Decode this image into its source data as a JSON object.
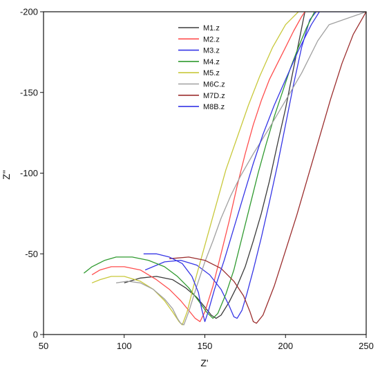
{
  "chart_data": {
    "type": "line",
    "xlabel": "Z'",
    "ylabel": "Z''",
    "xlim": [
      50,
      250
    ],
    "ylim": [
      0,
      -200
    ],
    "xticks": [
      "50",
      "100",
      "150",
      "200",
      "250"
    ],
    "yticks": [
      "0",
      "-50",
      "-100",
      "-150",
      "-200"
    ],
    "grid": false,
    "legend_position": "top-center",
    "series": [
      {
        "name": "M1.z",
        "color": "#3a3a3a",
        "points": [
          [
            100,
            -32
          ],
          [
            110,
            -35
          ],
          [
            120,
            -36
          ],
          [
            130,
            -34
          ],
          [
            138,
            -29
          ],
          [
            145,
            -23
          ],
          [
            150,
            -17
          ],
          [
            154,
            -12
          ],
          [
            157,
            -10
          ],
          [
            160,
            -12
          ],
          [
            165,
            -20
          ],
          [
            170,
            -30
          ],
          [
            175,
            -42
          ],
          [
            180,
            -58
          ],
          [
            185,
            -75
          ],
          [
            190,
            -95
          ],
          [
            195,
            -118
          ],
          [
            200,
            -140
          ],
          [
            205,
            -165
          ],
          [
            210,
            -190
          ],
          [
            212,
            -200
          ]
        ]
      },
      {
        "name": "M2.z",
        "color": "#ff4d4d",
        "points": [
          [
            80,
            -37
          ],
          [
            85,
            -40
          ],
          [
            92,
            -42
          ],
          [
            100,
            -42
          ],
          [
            110,
            -40
          ],
          [
            120,
            -34
          ],
          [
            128,
            -28
          ],
          [
            135,
            -21
          ],
          [
            140,
            -15
          ],
          [
            144,
            -10
          ],
          [
            147,
            -8
          ],
          [
            150,
            -14
          ],
          [
            155,
            -30
          ],
          [
            160,
            -50
          ],
          [
            165,
            -70
          ],
          [
            170,
            -92
          ],
          [
            175,
            -112
          ],
          [
            180,
            -130
          ],
          [
            185,
            -145
          ],
          [
            190,
            -158
          ],
          [
            195,
            -168
          ],
          [
            200,
            -178
          ],
          [
            205,
            -188
          ],
          [
            210,
            -197
          ],
          [
            212,
            -200
          ]
        ]
      },
      {
        "name": "M3.z",
        "color": "#3535e6",
        "points": [
          [
            113,
            -40
          ],
          [
            125,
            -45
          ],
          [
            135,
            -46
          ],
          [
            145,
            -43
          ],
          [
            153,
            -37
          ],
          [
            160,
            -28
          ],
          [
            165,
            -18
          ],
          [
            168,
            -11
          ],
          [
            170,
            -10
          ],
          [
            173,
            -15
          ],
          [
            176,
            -25
          ],
          [
            180,
            -40
          ],
          [
            185,
            -60
          ],
          [
            190,
            -82
          ],
          [
            195,
            -105
          ],
          [
            200,
            -130
          ],
          [
            205,
            -155
          ],
          [
            210,
            -178
          ],
          [
            215,
            -195
          ],
          [
            219,
            -200
          ],
          [
            250,
            -200
          ]
        ]
      },
      {
        "name": "M4.z",
        "color": "#2f9a2f",
        "points": [
          [
            75,
            -38
          ],
          [
            80,
            -42
          ],
          [
            88,
            -46
          ],
          [
            95,
            -48
          ],
          [
            105,
            -48
          ],
          [
            115,
            -46
          ],
          [
            125,
            -42
          ],
          [
            133,
            -36
          ],
          [
            140,
            -29
          ],
          [
            146,
            -21
          ],
          [
            151,
            -14
          ],
          [
            155,
            -10
          ],
          [
            158,
            -13
          ],
          [
            163,
            -25
          ],
          [
            168,
            -40
          ],
          [
            173,
            -60
          ],
          [
            178,
            -80
          ],
          [
            183,
            -100
          ],
          [
            188,
            -118
          ],
          [
            193,
            -135
          ],
          [
            198,
            -150
          ],
          [
            203,
            -165
          ],
          [
            208,
            -178
          ],
          [
            213,
            -190
          ],
          [
            218,
            -200
          ]
        ]
      },
      {
        "name": "M5.z",
        "color": "#c8c83a",
        "points": [
          [
            80,
            -32
          ],
          [
            85,
            -34
          ],
          [
            92,
            -36
          ],
          [
            100,
            -36
          ],
          [
            110,
            -33
          ],
          [
            118,
            -28
          ],
          [
            125,
            -21
          ],
          [
            130,
            -14
          ],
          [
            134,
            -8
          ],
          [
            136,
            -6
          ],
          [
            139,
            -14
          ],
          [
            143,
            -30
          ],
          [
            148,
            -48
          ],
          [
            153,
            -66
          ],
          [
            158,
            -84
          ],
          [
            163,
            -102
          ],
          [
            170,
            -122
          ],
          [
            177,
            -142
          ],
          [
            184,
            -160
          ],
          [
            192,
            -178
          ],
          [
            200,
            -192
          ],
          [
            208,
            -200
          ]
        ]
      },
      {
        "name": "M6C.z",
        "color": "#a0a0a0",
        "points": [
          [
            95,
            -32
          ],
          [
            102,
            -33
          ],
          [
            110,
            -32
          ],
          [
            118,
            -28
          ],
          [
            125,
            -22
          ],
          [
            130,
            -16
          ],
          [
            133,
            -10
          ],
          [
            135,
            -7
          ],
          [
            137,
            -6
          ],
          [
            140,
            -14
          ],
          [
            145,
            -30
          ],
          [
            150,
            -45
          ],
          [
            155,
            -58
          ],
          [
            160,
            -72
          ],
          [
            166,
            -86
          ],
          [
            172,
            -98
          ],
          [
            180,
            -112
          ],
          [
            190,
            -128
          ],
          [
            200,
            -145
          ],
          [
            210,
            -162
          ],
          [
            220,
            -182
          ],
          [
            227,
            -192
          ],
          [
            250,
            -200
          ]
        ]
      },
      {
        "name": "M7D.z",
        "color": "#9b2d2d",
        "points": [
          [
            128,
            -47
          ],
          [
            140,
            -48
          ],
          [
            150,
            -46
          ],
          [
            160,
            -41
          ],
          [
            168,
            -33
          ],
          [
            174,
            -24
          ],
          [
            178,
            -14
          ],
          [
            180,
            -8
          ],
          [
            182,
            -7
          ],
          [
            186,
            -12
          ],
          [
            193,
            -30
          ],
          [
            200,
            -52
          ],
          [
            207,
            -74
          ],
          [
            214,
            -98
          ],
          [
            221,
            -122
          ],
          [
            228,
            -146
          ],
          [
            235,
            -168
          ],
          [
            242,
            -186
          ],
          [
            250,
            -200
          ]
        ]
      },
      {
        "name": "M8B.z",
        "color": "#3535e6",
        "points": [
          [
            112,
            -50
          ],
          [
            120,
            -50
          ],
          [
            128,
            -48
          ],
          [
            136,
            -44
          ],
          [
            142,
            -36
          ],
          [
            146,
            -26
          ],
          [
            148,
            -16
          ],
          [
            150,
            -8
          ],
          [
            152,
            -14
          ],
          [
            156,
            -28
          ],
          [
            162,
            -46
          ],
          [
            168,
            -66
          ],
          [
            174,
            -86
          ],
          [
            180,
            -106
          ],
          [
            186,
            -124
          ],
          [
            193,
            -142
          ],
          [
            200,
            -158
          ],
          [
            208,
            -176
          ],
          [
            216,
            -192
          ],
          [
            221,
            -200
          ]
        ]
      }
    ]
  }
}
